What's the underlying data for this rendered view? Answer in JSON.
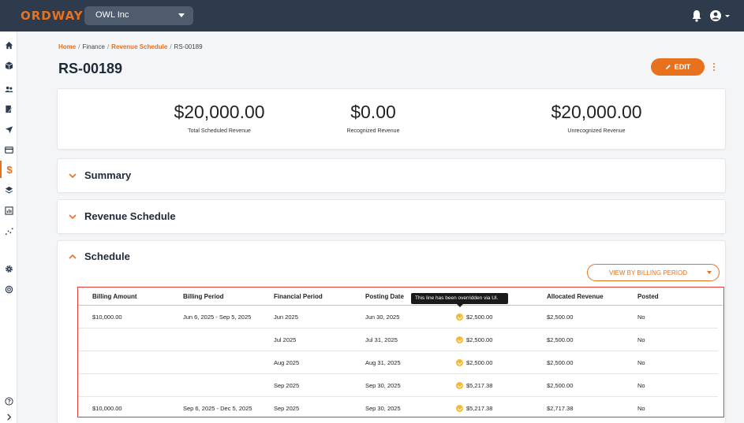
{
  "app": {
    "logo": "ORDWAY",
    "org": "OWL Inc",
    "accent": "#e8711e",
    "topbar_color": "#2d3b4d"
  },
  "sidebar": {
    "items": [
      {
        "icon": "home-icon"
      },
      {
        "icon": "box-icon"
      },
      {
        "icon": "users-icon"
      },
      {
        "icon": "invoice-edit-icon"
      },
      {
        "icon": "send-icon"
      },
      {
        "icon": "credit-card-icon"
      },
      {
        "icon": "dollar-icon",
        "label": "$",
        "active": true
      },
      {
        "icon": "layers-icon"
      },
      {
        "icon": "report-icon"
      },
      {
        "icon": "scatter-chart-icon"
      },
      {
        "icon": "settings-icon"
      },
      {
        "icon": "help-ring-icon"
      },
      {
        "icon": "question-circle-icon"
      },
      {
        "icon": "chevron-right-icon"
      }
    ]
  },
  "breadcrumb": {
    "home": "Home",
    "finance": "Finance",
    "revenue_schedule": "Revenue Schedule",
    "current": "RS-00189",
    "sep": "/"
  },
  "page": {
    "title": "RS-00189",
    "edit_label": "EDIT"
  },
  "stats": [
    {
      "value": "$20,000.00",
      "label": "Total Scheduled Revenue"
    },
    {
      "value": "$0.00",
      "label": "Recognized Revenue"
    },
    {
      "value": "$20,000.00",
      "label": "Unrecognized Revenue"
    }
  ],
  "sections": {
    "summary": "Summary",
    "revenue_schedule": "Revenue Schedule",
    "schedule": "Schedule"
  },
  "schedule": {
    "view_label": "VIEW BY BILLING PERIOD",
    "tooltip": "This line has been overridden via UI.",
    "columns": [
      "Billing Amount",
      "Billing Period",
      "Financial Period",
      "Posting Date",
      "",
      "Allocated Revenue",
      "Posted"
    ],
    "rows": [
      {
        "billing_amount": "$10,000.00",
        "billing_period": "Jun 6, 2025 - Sep 5, 2025",
        "financial_period": "Jun 2025",
        "posting_date": "Jun 30, 2025",
        "revenue": "$2,500.00",
        "allocated": "$2,500.00",
        "posted": "No"
      },
      {
        "billing_amount": "",
        "billing_period": "",
        "financial_period": "Jul 2025",
        "posting_date": "Jul 31, 2025",
        "revenue": "$2,500.00",
        "allocated": "$2,500.00",
        "posted": "No"
      },
      {
        "billing_amount": "",
        "billing_period": "",
        "financial_period": "Aug 2025",
        "posting_date": "Aug 31, 2025",
        "revenue": "$2,500.00",
        "allocated": "$2,500.00",
        "posted": "No"
      },
      {
        "billing_amount": "",
        "billing_period": "",
        "financial_period": "Sep 2025",
        "posting_date": "Sep 30, 2025",
        "revenue": "$5,217.38",
        "allocated": "$2,500.00",
        "posted": "No"
      },
      {
        "billing_amount": "$10,000.00",
        "billing_period": "Sep 6, 2025 - Dec 5, 2025",
        "financial_period": "Sep 2025",
        "posting_date": "Sep 30, 2025",
        "revenue": "$5,217.38",
        "allocated": "$2,717.38",
        "posted": "No"
      }
    ]
  }
}
